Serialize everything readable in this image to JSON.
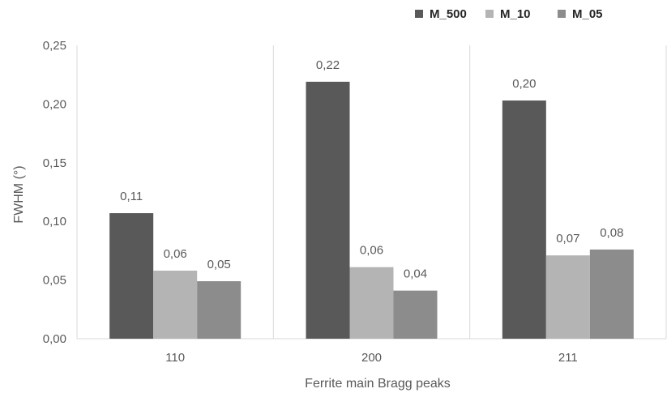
{
  "chart_data": {
    "type": "bar",
    "title": "",
    "xlabel": "Ferrite main Bragg peaks",
    "ylabel": "FWHM (°)",
    "categories": [
      "110",
      "200",
      "211"
    ],
    "series": [
      {
        "name": "M_500",
        "color": "#595959",
        "values": [
          0.107,
          0.219,
          0.203
        ],
        "labels": [
          "0,11",
          "0,22",
          "0,20"
        ]
      },
      {
        "name": "M_10",
        "color": "#b4b4b4",
        "values": [
          0.058,
          0.061,
          0.071
        ],
        "labels": [
          "0,06",
          "0,06",
          "0,07"
        ]
      },
      {
        "name": "M_05",
        "color": "#8c8c8c",
        "values": [
          0.049,
          0.041,
          0.076
        ],
        "labels": [
          "0,05",
          "0,04",
          "0,08"
        ]
      }
    ],
    "ylim": [
      0,
      0.25
    ],
    "yticks": [
      0,
      0.05,
      0.1,
      0.15,
      0.2,
      0.25
    ],
    "ytick_labels": [
      "0,00",
      "0,05",
      "0,10",
      "0,15",
      "0,20",
      "0,25"
    ],
    "grid": "vertical category separators",
    "legend_position": "top-right"
  }
}
